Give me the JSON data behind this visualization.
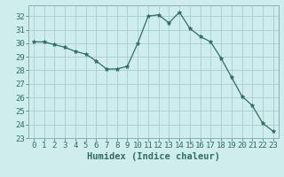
{
  "x": [
    0,
    1,
    2,
    3,
    4,
    5,
    6,
    7,
    8,
    9,
    10,
    11,
    12,
    13,
    14,
    15,
    16,
    17,
    18,
    19,
    20,
    21,
    22,
    23
  ],
  "y": [
    30.1,
    30.1,
    29.9,
    29.7,
    29.4,
    29.2,
    28.7,
    28.1,
    28.1,
    28.3,
    30.0,
    32.0,
    32.1,
    31.5,
    32.3,
    31.1,
    30.5,
    30.1,
    28.9,
    27.5,
    26.1,
    25.4,
    24.1,
    23.5
  ],
  "line_color": "#2d6e62",
  "marker": "*",
  "marker_size": 3.5,
  "bg_color": "#d0eded",
  "grid_color": "#aacccc",
  "xlabel": "Humidex (Indice chaleur)",
  "xlim": [
    -0.5,
    23.5
  ],
  "ylim": [
    23,
    32.8
  ],
  "yticks": [
    23,
    24,
    25,
    26,
    27,
    28,
    29,
    30,
    31,
    32
  ],
  "xticks": [
    0,
    1,
    2,
    3,
    4,
    5,
    6,
    7,
    8,
    9,
    10,
    11,
    12,
    13,
    14,
    15,
    16,
    17,
    18,
    19,
    20,
    21,
    22,
    23
  ],
  "tick_fontsize": 6.5,
  "xlabel_fontsize": 7.5,
  "tick_color": "#2d6e62",
  "spine_color": "#8ab0b0"
}
